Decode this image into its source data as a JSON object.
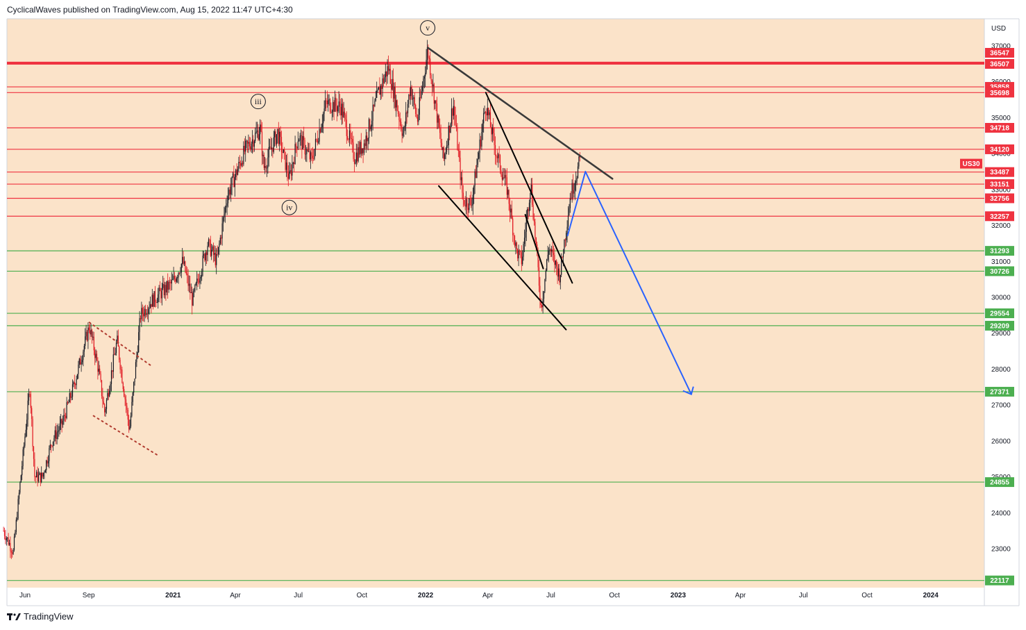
{
  "header": {
    "text": "CyclicalWaves published on TradingView.com, Aug 15, 2022 11:47 UTC+4:30"
  },
  "footer": {
    "brand": "TradingView"
  },
  "colors": {
    "background": "#fbe3c9",
    "red": "#ef3340",
    "green": "#4caf50",
    "blue": "#2962ff",
    "dark_line": "#000000",
    "trend_gray": "#3a3a3a"
  },
  "chart_data": {
    "type": "candlestick",
    "symbol_label": "US30",
    "currency_label": "USD",
    "y_axis": {
      "range": [
        22000,
        37500
      ],
      "ticks": [
        23000,
        24000,
        25000,
        26000,
        27000,
        28000,
        29000,
        30000,
        31000,
        32000,
        33000,
        34000,
        35000,
        36000,
        37000
      ]
    },
    "x_axis": {
      "tick_labels": [
        "Jun",
        "Sep",
        "2021",
        "Apr",
        "Jul",
        "Oct",
        "2022",
        "Apr",
        "Jul",
        "Oct",
        "2023",
        "Apr",
        "Jul",
        "Oct",
        "2024"
      ]
    },
    "resistance_levels": [
      36547,
      36507,
      35858,
      35698,
      34718,
      34120,
      33487,
      33151,
      32756,
      32257
    ],
    "support_levels": [
      31293,
      30726,
      29554,
      29209,
      27371,
      24855,
      22117
    ],
    "wave_labels": [
      "iii",
      "iv",
      "v"
    ],
    "price_path": [
      {
        "t": "2020-05",
        "p": 23500
      },
      {
        "t": "2020-05-15",
        "p": 22900
      },
      {
        "t": "2020-06-08",
        "p": 27500
      },
      {
        "t": "2020-06-15",
        "p": 25000
      },
      {
        "t": "2020-06-26",
        "p": 25000
      },
      {
        "t": "2020-07-10",
        "p": 26000
      },
      {
        "t": "2020-07-25",
        "p": 26500
      },
      {
        "t": "2020-08-10",
        "p": 27500
      },
      {
        "t": "2020-09-02",
        "p": 29200
      },
      {
        "t": "2020-09-15",
        "p": 28000
      },
      {
        "t": "2020-09-24",
        "p": 26800
      },
      {
        "t": "2020-10-12",
        "p": 28800
      },
      {
        "t": "2020-10-30",
        "p": 26300
      },
      {
        "t": "2020-11-15",
        "p": 29500
      },
      {
        "t": "2020-12-01",
        "p": 29900
      },
      {
        "t": "2020-12-31",
        "p": 30400
      },
      {
        "t": "2021-01-15",
        "p": 31000
      },
      {
        "t": "2021-01-29",
        "p": 29900
      },
      {
        "t": "2021-02-20",
        "p": 31500
      },
      {
        "t": "2021-03-05",
        "p": 31000
      },
      {
        "t": "2021-03-20",
        "p": 32800
      },
      {
        "t": "2021-04-15",
        "p": 34100
      },
      {
        "t": "2021-05-07",
        "p": 34700
      },
      {
        "t": "2021-05-12",
        "p": 33600
      },
      {
        "t": "2021-06-01",
        "p": 34600
      },
      {
        "t": "2021-06-18",
        "p": 33300
      },
      {
        "t": "2021-07-01",
        "p": 34500
      },
      {
        "t": "2021-07-20",
        "p": 33800
      },
      {
        "t": "2021-08-10",
        "p": 35400
      },
      {
        "t": "2021-09-01",
        "p": 35300
      },
      {
        "t": "2021-09-20",
        "p": 33900
      },
      {
        "t": "2021-10-05",
        "p": 34300
      },
      {
        "t": "2021-10-25",
        "p": 35700
      },
      {
        "t": "2021-11-08",
        "p": 36400
      },
      {
        "t": "2021-11-30",
        "p": 34500
      },
      {
        "t": "2021-12-10",
        "p": 35900
      },
      {
        "t": "2021-12-20",
        "p": 34900
      },
      {
        "t": "2022-01-04",
        "p": 36900
      },
      {
        "t": "2022-01-20",
        "p": 34700
      },
      {
        "t": "2022-01-27",
        "p": 33800
      },
      {
        "t": "2022-02-10",
        "p": 35400
      },
      {
        "t": "2022-02-24",
        "p": 32700
      },
      {
        "t": "2022-03-08",
        "p": 32600
      },
      {
        "t": "2022-03-29",
        "p": 35400
      },
      {
        "t": "2022-04-12",
        "p": 34100
      },
      {
        "t": "2022-04-29",
        "p": 33000
      },
      {
        "t": "2022-05-12",
        "p": 31300
      },
      {
        "t": "2022-05-20",
        "p": 31000
      },
      {
        "t": "2022-06-02",
        "p": 33200
      },
      {
        "t": "2022-06-17",
        "p": 29700
      },
      {
        "t": "2022-06-28",
        "p": 31400
      },
      {
        "t": "2022-07-14",
        "p": 30600
      },
      {
        "t": "2022-07-29",
        "p": 32800
      },
      {
        "t": "2022-08-12",
        "p": 33800
      }
    ]
  }
}
